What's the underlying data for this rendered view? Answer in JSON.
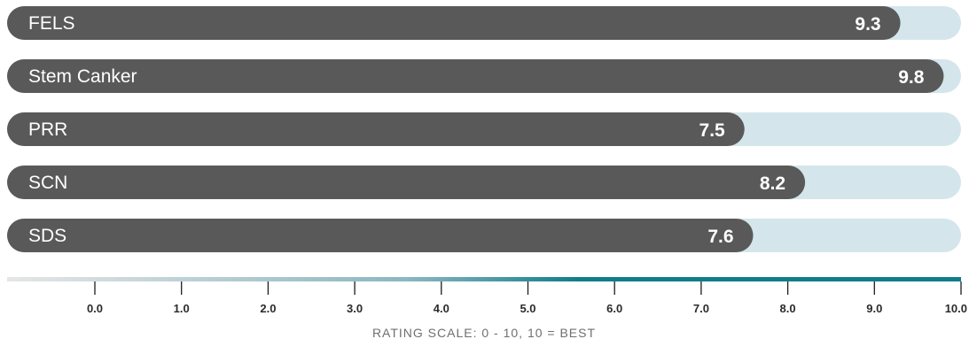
{
  "chart_data": {
    "type": "bar",
    "orientation": "horizontal",
    "categories": [
      "FELS",
      "Stem Canker",
      "PRR",
      "SCN",
      "SDS"
    ],
    "values": [
      9.3,
      9.8,
      7.5,
      8.2,
      7.6
    ],
    "value_labels": [
      "9.3",
      "9.8",
      "7.5",
      "8.2",
      "7.6"
    ],
    "xlim": [
      0,
      10
    ],
    "ticks": [
      0,
      1,
      2,
      3,
      4,
      5,
      6,
      7,
      8,
      9,
      10
    ],
    "tick_labels": [
      "0.0",
      "1.0",
      "2.0",
      "3.0",
      "4.0",
      "5.0",
      "6.0",
      "7.0",
      "8.0",
      "9.0",
      "10.0"
    ],
    "xlabel": "RATING SCALE: 0 - 10, 10 = BEST",
    "title": "",
    "ylabel": "",
    "legend": "none",
    "grid": false
  },
  "colors": {
    "bar_fill": "#595959",
    "track_fill": "#d4e6eb",
    "label_text": "#ffffff",
    "axis_gradient_start": "#e6e6e6",
    "axis_gradient_mid": "#8ab7c1",
    "axis_gradient_end": "#0f7d8b",
    "tick_color": "#1c1c1c",
    "tick_label_color": "#2b2b2b",
    "caption_color": "#6f6f6f"
  }
}
